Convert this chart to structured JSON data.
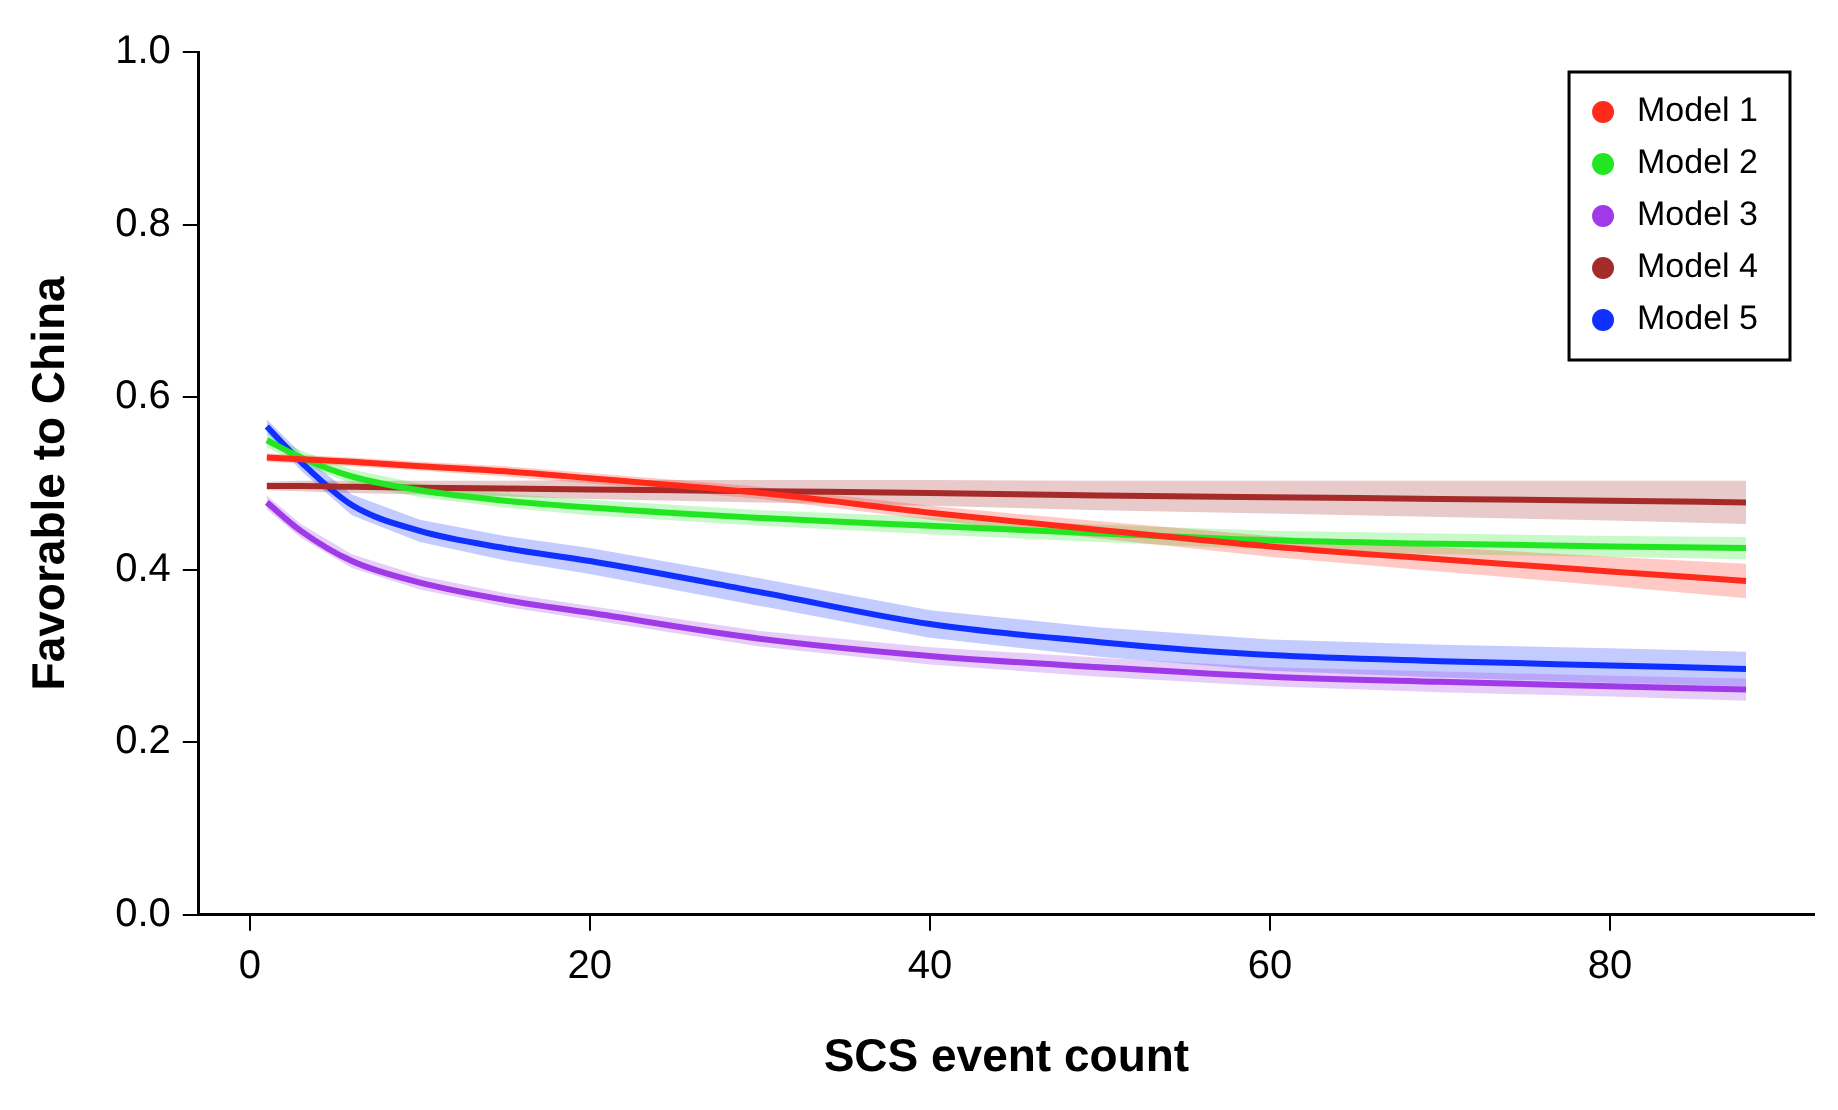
{
  "chart_data": {
    "type": "line",
    "xlabel": "SCS event count",
    "ylabel": "Favorable to China",
    "x": [
      1,
      3,
      6,
      10,
      15,
      20,
      30,
      40,
      50,
      60,
      70,
      80,
      88
    ],
    "series": [
      {
        "name": "Model 1",
        "color": "#ff2a1a",
        "values": [
          0.53,
          0.528,
          0.525,
          0.52,
          0.514,
          0.506,
          0.489,
          0.466,
          0.446,
          0.427,
          0.412,
          0.398,
          0.387
        ],
        "lower": [
          0.525,
          0.523,
          0.52,
          0.515,
          0.508,
          0.5,
          0.482,
          0.458,
          0.436,
          0.415,
          0.398,
          0.381,
          0.367
        ],
        "upper": [
          0.535,
          0.533,
          0.53,
          0.525,
          0.52,
          0.512,
          0.496,
          0.474,
          0.456,
          0.439,
          0.426,
          0.415,
          0.407
        ]
      },
      {
        "name": "Model 2",
        "color": "#22e622",
        "values": [
          0.55,
          0.53,
          0.508,
          0.492,
          0.48,
          0.472,
          0.46,
          0.451,
          0.442,
          0.434,
          0.43,
          0.427,
          0.425
        ],
        "lower": [
          0.542,
          0.522,
          0.5,
          0.484,
          0.472,
          0.463,
          0.451,
          0.441,
          0.432,
          0.423,
          0.418,
          0.415,
          0.412
        ],
        "upper": [
          0.558,
          0.538,
          0.516,
          0.5,
          0.488,
          0.481,
          0.469,
          0.461,
          0.452,
          0.445,
          0.442,
          0.439,
          0.438
        ]
      },
      {
        "name": "Model 3",
        "color": "#a03ae8",
        "values": [
          0.478,
          0.445,
          0.41,
          0.385,
          0.365,
          0.35,
          0.32,
          0.3,
          0.287,
          0.276,
          0.27,
          0.265,
          0.261
        ],
        "lower": [
          0.47,
          0.437,
          0.402,
          0.377,
          0.357,
          0.342,
          0.311,
          0.29,
          0.276,
          0.265,
          0.258,
          0.253,
          0.248
        ],
        "upper": [
          0.486,
          0.453,
          0.418,
          0.393,
          0.373,
          0.358,
          0.329,
          0.31,
          0.298,
          0.287,
          0.282,
          0.277,
          0.274
        ]
      },
      {
        "name": "Model 4",
        "color": "#a52a2a",
        "values": [
          0.497,
          0.497,
          0.496,
          0.495,
          0.494,
          0.493,
          0.491,
          0.489,
          0.486,
          0.484,
          0.482,
          0.48,
          0.478
        ],
        "lower": [
          0.492,
          0.491,
          0.489,
          0.487,
          0.485,
          0.482,
          0.478,
          0.474,
          0.469,
          0.465,
          0.461,
          0.457,
          0.453
        ],
        "upper": [
          0.502,
          0.503,
          0.503,
          0.503,
          0.503,
          0.504,
          0.504,
          0.504,
          0.503,
          0.503,
          0.503,
          0.503,
          0.503
        ]
      },
      {
        "name": "Model 5",
        "color": "#1030ff",
        "values": [
          0.566,
          0.525,
          0.475,
          0.445,
          0.425,
          0.41,
          0.374,
          0.337,
          0.316,
          0.301,
          0.294,
          0.289,
          0.285
        ],
        "lower": [
          0.558,
          0.515,
          0.463,
          0.432,
          0.411,
          0.395,
          0.358,
          0.321,
          0.299,
          0.283,
          0.275,
          0.269,
          0.265
        ],
        "upper": [
          0.574,
          0.535,
          0.487,
          0.458,
          0.439,
          0.425,
          0.39,
          0.353,
          0.333,
          0.319,
          0.313,
          0.309,
          0.305
        ]
      }
    ],
    "xlim": [
      -3,
      92
    ],
    "xticks": [
      0,
      20,
      40,
      60,
      80
    ],
    "ylim": [
      0,
      1
    ],
    "yticks": [
      {
        "value": 0,
        "label": "0.0"
      },
      {
        "value": 0.2,
        "label": "0.2"
      },
      {
        "value": 0.4,
        "label": "0.4"
      },
      {
        "value": 0.6,
        "label": "0.6"
      },
      {
        "value": 0.8,
        "label": "0.8"
      },
      {
        "value": 1,
        "label": "1.0"
      }
    ],
    "legend": "top right",
    "grid": false,
    "marker": "none",
    "line_style": "solid"
  }
}
